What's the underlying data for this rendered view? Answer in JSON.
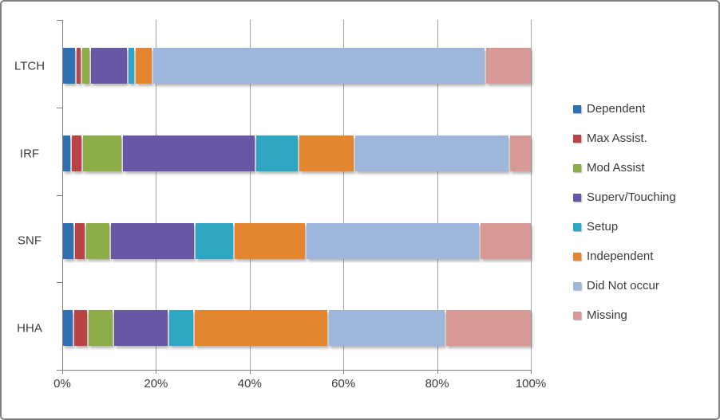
{
  "frame": {
    "background": "#FFFFFF",
    "border_color": "#7F7F7F"
  },
  "axis_style": {
    "axis_line_color": "#7F7F7F",
    "gridline_color": "#A3A3A3",
    "text_color": "#3A3A3A"
  },
  "chart_data": {
    "type": "bar",
    "orientation": "horizontal",
    "stacked": true,
    "title": "",
    "xlabel": "",
    "ylabel": "",
    "xlim": [
      0,
      100
    ],
    "grid": true,
    "legend_position": "right",
    "categories": [
      "LTCH",
      "IRF",
      "SNF",
      "HHA"
    ],
    "x_tick_labels": [
      "0%",
      "20%",
      "40%",
      "60%",
      "80%",
      "100%"
    ],
    "x_tick_values": [
      0,
      20,
      40,
      60,
      80,
      100
    ],
    "series": [
      {
        "name": "Dependent",
        "color": "#2F70B2",
        "values": [
          2.6,
          1.6,
          2.3,
          2.1
        ]
      },
      {
        "name": "Max Assist.",
        "color": "#BA4345",
        "values": [
          0.9,
          2.0,
          2.0,
          2.8
        ]
      },
      {
        "name": "Mod Assist",
        "color": "#8DAD49",
        "values": [
          1.5,
          8.5,
          5.2,
          5.2
        ]
      },
      {
        "name": "Superv/Touching",
        "color": "#6757A4",
        "values": [
          7.9,
          28.8,
          18.2,
          11.8
        ]
      },
      {
        "name": "Setup",
        "color": "#2EA6C2",
        "values": [
          1.3,
          9.1,
          8.1,
          5.2
        ]
      },
      {
        "name": "Independent",
        "color": "#E3862F",
        "values": [
          3.4,
          11.9,
          15.5,
          29.0
        ]
      },
      {
        "name": "Did Not occur",
        "color": "#9EB5DC",
        "values": [
          72.6,
          33.6,
          37.7,
          25.4
        ]
      },
      {
        "name": "Missing",
        "color": "#D89896",
        "values": [
          9.8,
          4.5,
          11.0,
          18.5
        ]
      }
    ]
  }
}
